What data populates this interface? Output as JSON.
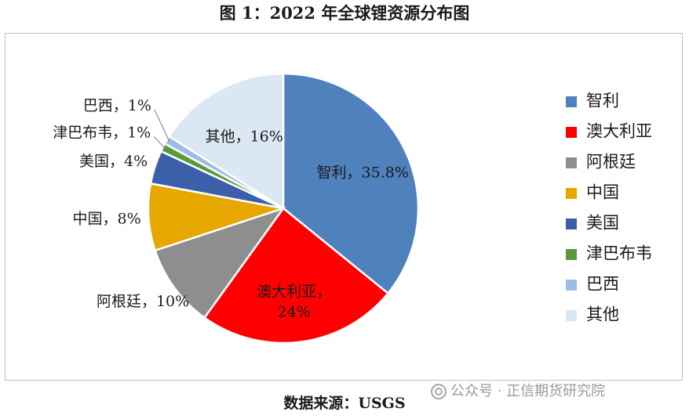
{
  "title": "图 1：2022 年全球锂资源分布图",
  "source": "数据来源：USGS",
  "watermark": {
    "text": "公众号 · 正信期货研究院",
    "icon": "wechat-official-account-icon"
  },
  "chart_data": {
    "type": "pie",
    "title": "图 1：2022 年全球锂资源分布图",
    "legend_position": "right",
    "slices": [
      {
        "name": "智利",
        "label": "智利，35.8%",
        "value": 35.8,
        "color": "#4f81bd"
      },
      {
        "name": "澳大利亚",
        "label": "澳大利亚，24%",
        "value": 24,
        "color": "#ff0000"
      },
      {
        "name": "阿根廷",
        "label": "阿根廷，10%",
        "value": 10,
        "color": "#8e8e8e"
      },
      {
        "name": "中国",
        "label": "中国，8%",
        "value": 8,
        "color": "#e6a800"
      },
      {
        "name": "美国",
        "label": "美国，4%",
        "value": 4,
        "color": "#3b5fa9"
      },
      {
        "name": "津巴布韦",
        "label": "津巴布韦，1%",
        "value": 1,
        "color": "#5a9a3c"
      },
      {
        "name": "巴西",
        "label": "巴西，1%",
        "value": 1,
        "color": "#9bbde3"
      },
      {
        "name": "其他",
        "label": "其他，16%",
        "value": 16,
        "color": "#dce7f4"
      }
    ]
  }
}
